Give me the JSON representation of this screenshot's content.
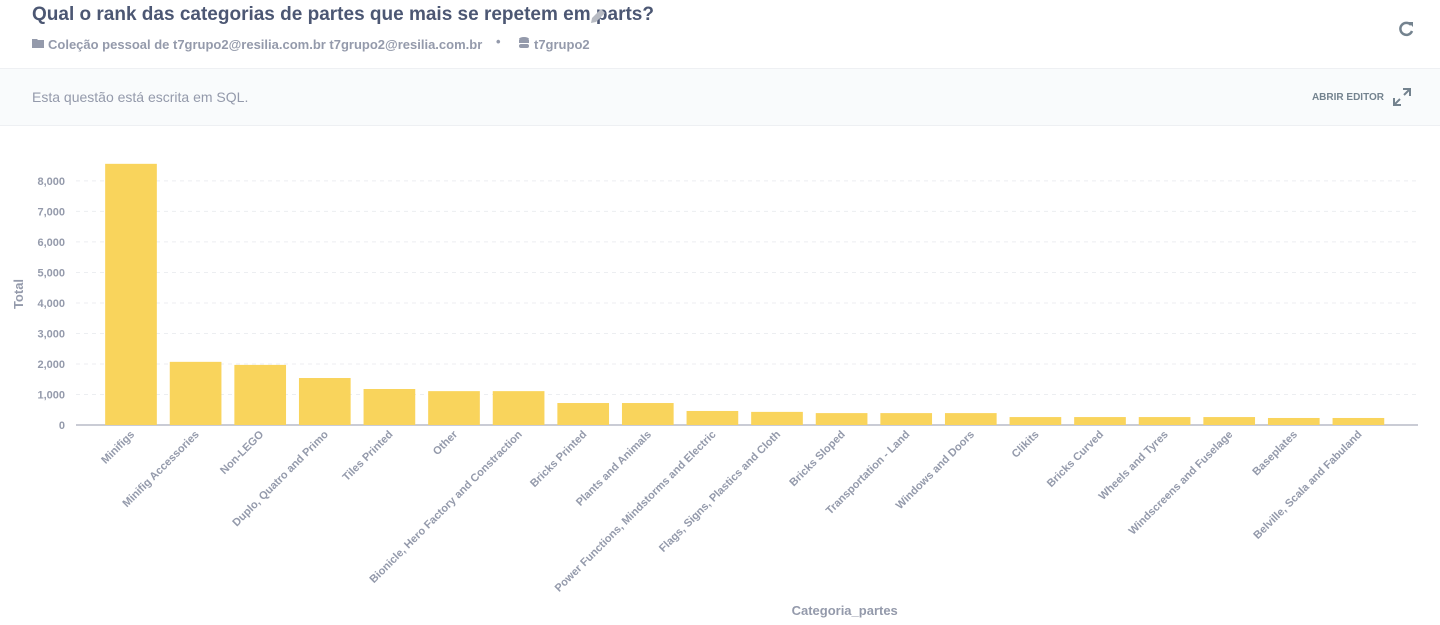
{
  "header": {
    "title": "Qual o rank das categorias de partes que mais se repetem em parts?",
    "collection": "Coleção pessoal de t7grupo2@resilia.com.br t7grupo2@resilia.com.br",
    "database": "t7grupo2"
  },
  "notice": {
    "text": "Esta questão está escrita em SQL.",
    "action": "ABRIR EDITOR"
  },
  "chart_data": {
    "type": "bar",
    "x_label": "Categoria_partes",
    "y_label": "Total",
    "color": "#f9d45c",
    "grid": true,
    "categories": [
      "Minifigs",
      "Minifig Accessories",
      "Non-LEGO",
      "Duplo, Quatro and Primo",
      "Tiles Printed",
      "Other",
      "Bionicle, Hero Factory and Constraction",
      "Bricks Printed",
      "Plants and Animals",
      "Power Functions, Mindstorms and Electric",
      "Flags, Signs, Plastics and Cloth",
      "Bricks Sloped",
      "Transportation - Land",
      "Windows and Doors",
      "Clikits",
      "Bricks Curved",
      "Wheels and Tyres",
      "Windscreens and Fuselage",
      "Baseplates",
      "Belville, Scala and Fabuland"
    ],
    "values": [
      8560,
      2070,
      1970,
      1540,
      1180,
      1110,
      1110,
      720,
      720,
      460,
      430,
      390,
      390,
      390,
      260,
      260,
      260,
      260,
      230,
      230
    ],
    "ylim": [
      0,
      8800
    ],
    "yticks": [
      0,
      {
        "value": 1000,
        "label": "1,000"
      },
      {
        "value": 2000,
        "label": "2,000"
      },
      {
        "value": 3000,
        "label": "3,000"
      },
      {
        "value": 4000,
        "label": "4,000"
      },
      {
        "value": 5000,
        "label": "5,000"
      },
      {
        "value": 6000,
        "label": "6,000"
      },
      {
        "value": 7000,
        "label": "7,000"
      },
      {
        "value": 8000,
        "label": "8,000"
      }
    ]
  }
}
